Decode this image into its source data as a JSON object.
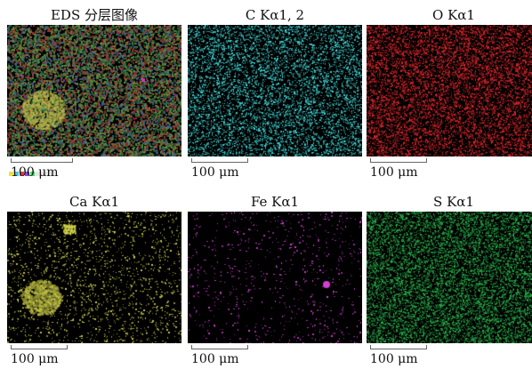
{
  "panels": [
    {
      "title": "EDS 分层图像",
      "scale_label": "100 μm",
      "kind": "layered",
      "color": "#3c7a3a"
    },
    {
      "title": "C Kα1, 2",
      "scale_label": "100 μm",
      "kind": "element",
      "color": "#3fd6d6",
      "density": 0.42
    },
    {
      "title": "O Kα1",
      "scale_label": "100 μm",
      "kind": "element",
      "color": "#e0262d",
      "density": 0.55
    },
    {
      "title": "Ca Kα1",
      "scale_label": "100 μm",
      "kind": "element",
      "color": "#cfd04a",
      "density": 0.12,
      "cluster": true
    },
    {
      "title": "Fe Kα1",
      "scale_label": "100 μm",
      "kind": "element",
      "color": "#d23fd6",
      "density": 0.05,
      "spot": true
    },
    {
      "title": "S Kα1",
      "scale_label": "100 μm",
      "kind": "element",
      "color": "#27b04a",
      "density": 0.6
    }
  ],
  "legend_colors": [
    "#f0e040",
    "#40c8e0",
    "#e04040",
    "#a040e0",
    "#40e060"
  ]
}
